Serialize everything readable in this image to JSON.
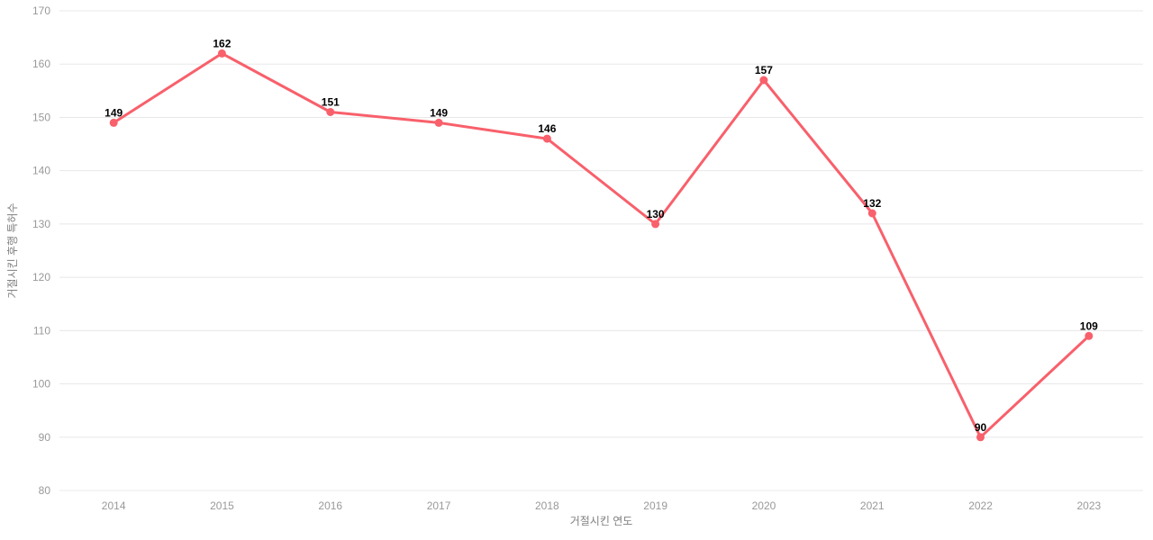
{
  "chart_data": {
    "type": "line",
    "title": "",
    "categories": [
      "2014",
      "2015",
      "2016",
      "2017",
      "2018",
      "2019",
      "2020",
      "2021",
      "2022",
      "2023"
    ],
    "values": [
      149,
      162,
      151,
      149,
      146,
      130,
      157,
      132,
      90,
      109
    ],
    "point_labels": [
      "149",
      "162",
      "151",
      "149",
      "146",
      "130",
      "157",
      "132",
      "90",
      "109"
    ],
    "xlabel": "거절시킨 연도",
    "ylabel": "거절시킨 후행 특허수",
    "ylim": [
      80,
      170
    ],
    "ytick_step": 10,
    "y_ticks": [
      80,
      90,
      100,
      110,
      120,
      130,
      140,
      150,
      160,
      170
    ],
    "grid": "horizontal-only",
    "legend": "none",
    "colors": {
      "line": "#f8606b",
      "marker": "#f8606b",
      "point_label": "#000000",
      "tick_label": "#999999",
      "axis_title": "#808080",
      "gridline": "#e8e8e8",
      "background": "#ffffff"
    }
  }
}
